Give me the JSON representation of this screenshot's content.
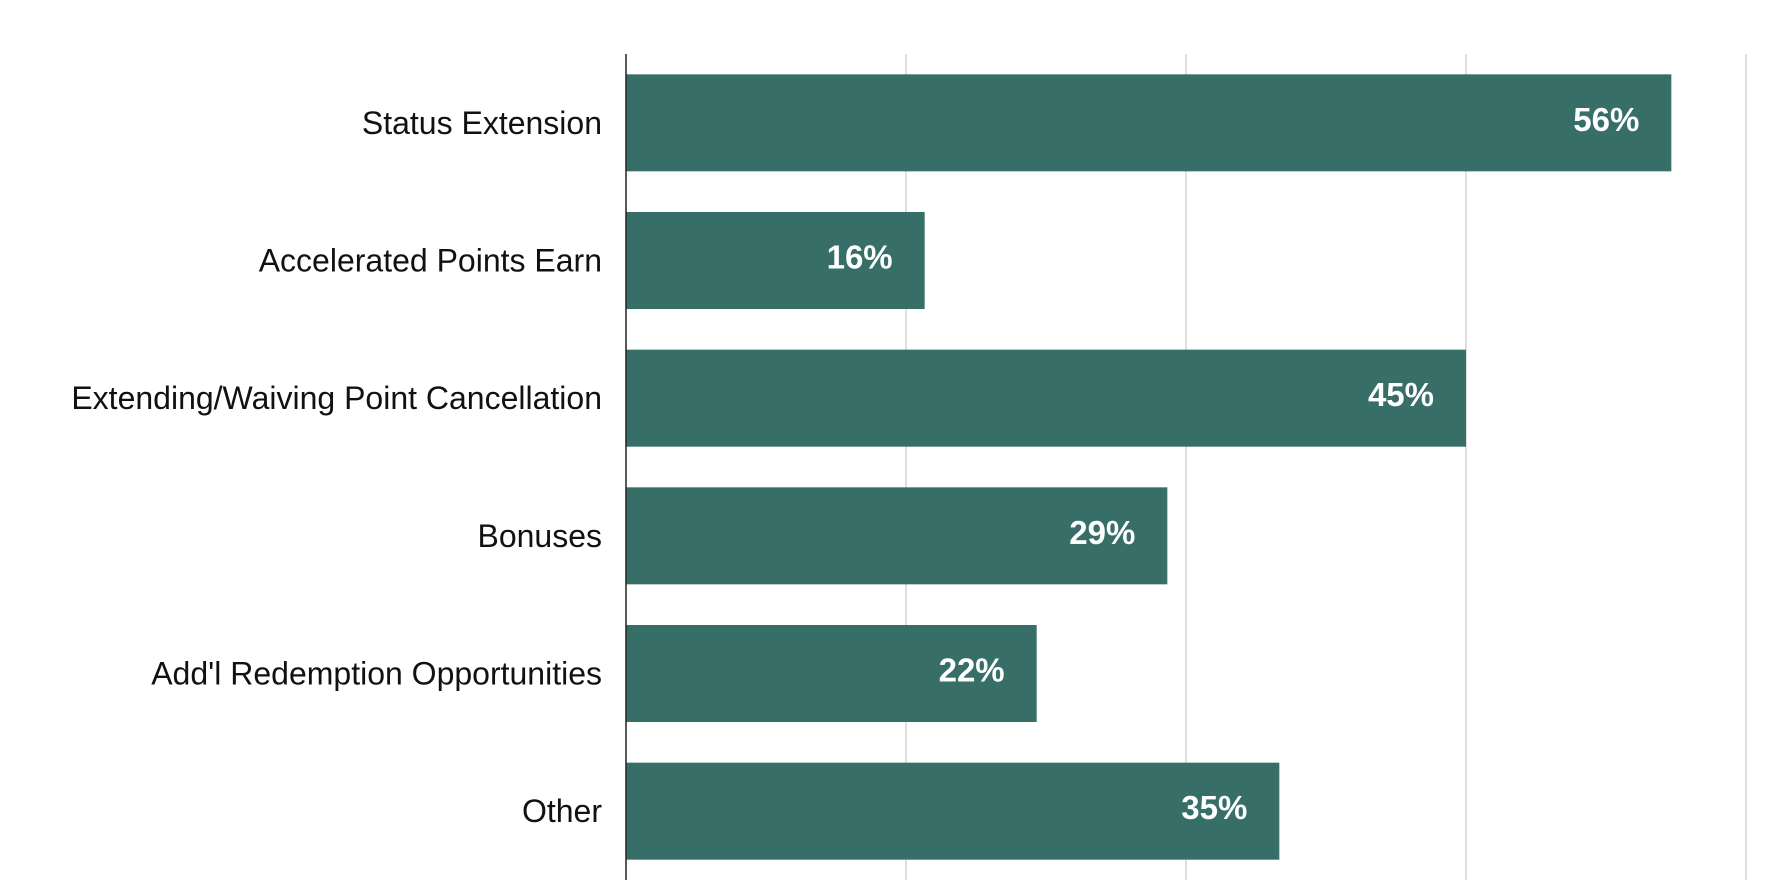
{
  "chart_data": {
    "type": "bar",
    "orientation": "horizontal",
    "categories": [
      "Status Extension",
      "Accelerated Points Earn",
      "Extending/Waiving Point Cancellation",
      "Bonuses",
      "Add'l Redemption Opportunities",
      "Other"
    ],
    "values": [
      56,
      16,
      45,
      29,
      22,
      35
    ],
    "data_labels": [
      "56%",
      "16%",
      "45%",
      "29%",
      "22%",
      "35%"
    ],
    "value_unit": "%",
    "xlim": [
      0,
      60
    ],
    "gridlines": [
      15,
      30,
      45,
      60
    ],
    "grid": true,
    "tick_labels_visible": false,
    "legend": "none",
    "title": "",
    "xlabel": "",
    "ylabel": "",
    "colors": {
      "bar": "#376e67",
      "grid": "#c8c8c8",
      "axis": "#222222",
      "label": "#111111",
      "data_label": "#ffffff"
    }
  }
}
